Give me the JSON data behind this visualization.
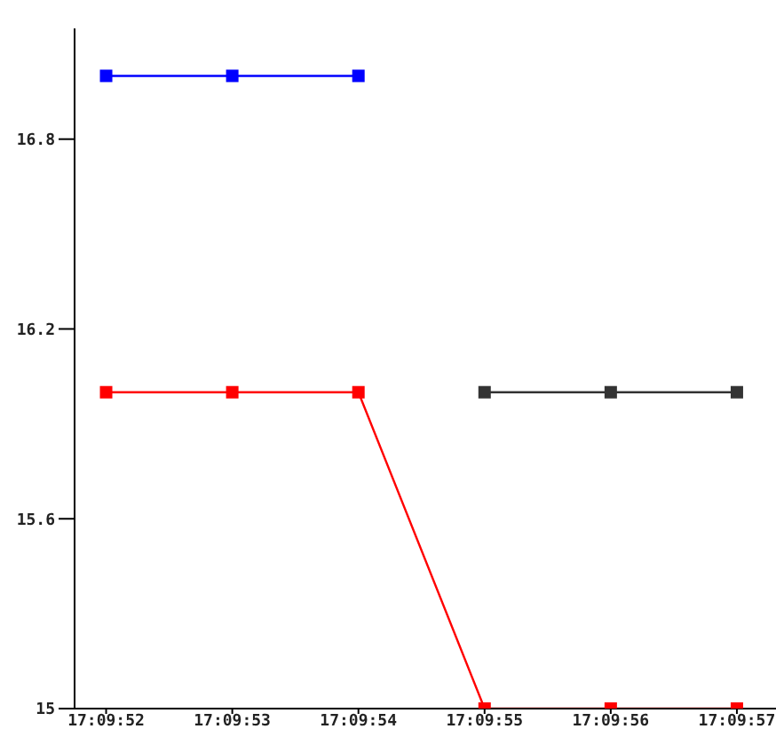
{
  "chart_data": {
    "type": "line",
    "categories": [
      "17:09:52",
      "17:09:53",
      "17:09:54",
      "17:09:55",
      "17:09:56",
      "17:09:57"
    ],
    "series": [
      {
        "color": "#0000ff",
        "values": [
          17.0,
          17.0,
          17.0,
          null,
          null,
          null
        ]
      },
      {
        "color": "#333333",
        "values": [
          null,
          null,
          null,
          16.0,
          16.0,
          16.0
        ]
      },
      {
        "color": "#ff0000",
        "values": [
          16.0,
          16.0,
          16.0,
          15,
          15,
          15
        ]
      }
    ],
    "ylim": [
      15,
      17.15
    ],
    "yticks": [
      15,
      15.6,
      16.2,
      16.8
    ],
    "grid": false,
    "legend": false,
    "marker": "square",
    "line_style": "solid"
  }
}
